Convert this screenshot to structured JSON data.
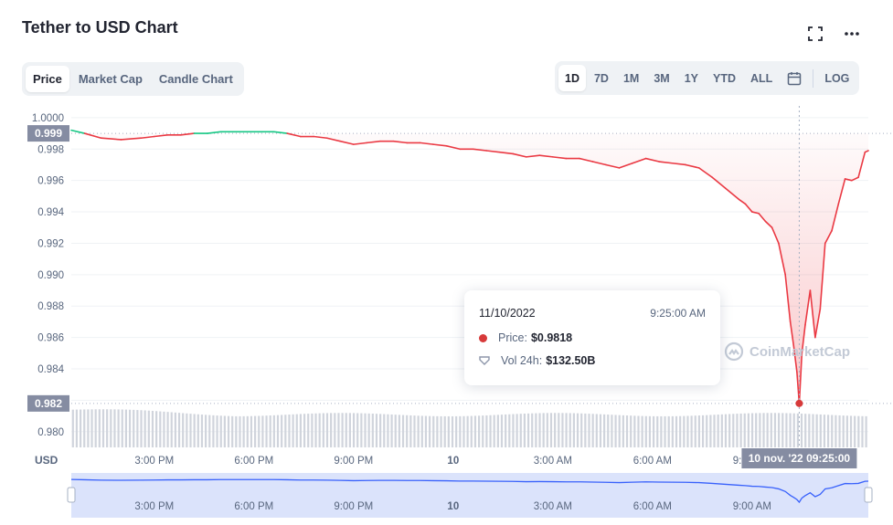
{
  "header": {
    "title": "Tether to USD Chart",
    "expand_icon": "expand-icon",
    "more_icon": "more-icon"
  },
  "view_tabs": [
    {
      "label": "Price",
      "active": true
    },
    {
      "label": "Market Cap",
      "active": false
    },
    {
      "label": "Candle Chart",
      "active": false
    }
  ],
  "ranges": [
    {
      "label": "1D",
      "active": true
    },
    {
      "label": "7D",
      "active": false
    },
    {
      "label": "1M",
      "active": false
    },
    {
      "label": "3M",
      "active": false
    },
    {
      "label": "1Y",
      "active": false
    },
    {
      "label": "YTD",
      "active": false
    },
    {
      "label": "ALL",
      "active": false
    }
  ],
  "calendar_icon": "calendar-icon",
  "log_label": "LOG",
  "tooltip": {
    "date": "11/10/2022",
    "time": "9:25:00 AM",
    "price_label": "Price:",
    "price_value": "$0.9818",
    "vol_label": "Vol 24h:",
    "vol_value": "$132.50B"
  },
  "watermark": "CoinMarketCap",
  "currency_label": "USD",
  "colors": {
    "up": "#16c784",
    "down": "#ea3943",
    "dot": "#d73a3a",
    "badge": "#858ca2",
    "volume": "#d0d4dc",
    "navigator_line": "#3861fb",
    "navigator_fill": "#dbe3fb"
  },
  "chart_data": {
    "type": "line",
    "currency": "USD",
    "open_price": 0.999,
    "ylim": [
      0.979,
      1.0004
    ],
    "y_ticks": [
      "1.0000",
      "0.998",
      "0.996",
      "0.994",
      "0.992",
      "0.990",
      "0.988",
      "0.986",
      "0.984",
      "0.982",
      "0.980"
    ],
    "y_tick_values": [
      1.0,
      0.998,
      0.996,
      0.994,
      0.992,
      0.99,
      0.988,
      0.986,
      0.984,
      0.982,
      0.98
    ],
    "x_ticks": [
      "3:00 PM",
      "6:00 PM",
      "9:00 PM",
      "10",
      "3:00 AM",
      "6:00 AM",
      "9:00 AM"
    ],
    "x_tick_hours": [
      3,
      6,
      9,
      12,
      15,
      18,
      21
    ],
    "x_range_hours": [
      0.5,
      24.5
    ],
    "crosshair": {
      "hour": 22.42,
      "value": 0.9818,
      "label": "10 nov. '22   09:25:00"
    },
    "badges": [
      {
        "label": "0.999",
        "value": 0.999
      },
      {
        "label": "0.982",
        "value": 0.9818
      }
    ],
    "series": [
      {
        "x": [
          0.5,
          0.9,
          1.4,
          2,
          2.6,
          3,
          3.4,
          3.8,
          4.2,
          4.6,
          5,
          5.4,
          5.8,
          6.2,
          6.6,
          7,
          7.4,
          7.8,
          8.2,
          8.6,
          9,
          9.4,
          9.8,
          10.2,
          10.6,
          11,
          11.4,
          11.8,
          12.2,
          12.6,
          13,
          13.4,
          13.8,
          14.2,
          14.6,
          15,
          15.4,
          15.8,
          16.2,
          16.6,
          17,
          17.4,
          17.8,
          18.2,
          18.6,
          19,
          19.4,
          19.8,
          20.2,
          20.6,
          20.8,
          21,
          21.2,
          21.4,
          21.6,
          21.8,
          22,
          22.15,
          22.25,
          22.35,
          22.42,
          22.5,
          22.6,
          22.75,
          22.9,
          23.05,
          23.2,
          23.4,
          23.6,
          23.8,
          24,
          24.2,
          24.4,
          24.5
        ],
        "y": [
          0.9992,
          0.999,
          0.9987,
          0.9986,
          0.9987,
          0.9988,
          0.9989,
          0.9989,
          0.999,
          0.999,
          0.9991,
          0.9991,
          0.9991,
          0.9991,
          0.9991,
          0.999,
          0.9988,
          0.9988,
          0.9987,
          0.9985,
          0.9983,
          0.9984,
          0.9985,
          0.9985,
          0.9984,
          0.9984,
          0.9983,
          0.9982,
          0.998,
          0.998,
          0.9979,
          0.9978,
          0.9977,
          0.9975,
          0.9976,
          0.9975,
          0.9974,
          0.9974,
          0.9972,
          0.997,
          0.9968,
          0.9971,
          0.9974,
          0.9972,
          0.9971,
          0.997,
          0.9968,
          0.9962,
          0.9955,
          0.9948,
          0.9945,
          0.994,
          0.9939,
          0.9934,
          0.993,
          0.992,
          0.99,
          0.987,
          0.9855,
          0.9838,
          0.9818,
          0.985,
          0.9868,
          0.989,
          0.986,
          0.9878,
          0.992,
          0.9928,
          0.9945,
          0.9961,
          0.996,
          0.9962,
          0.9978,
          0.9979
        ]
      }
    ]
  }
}
